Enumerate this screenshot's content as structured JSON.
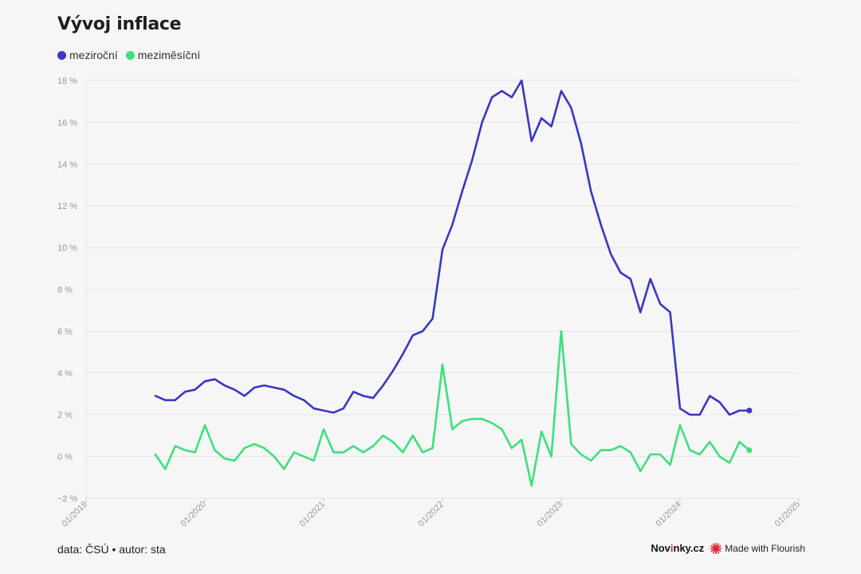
{
  "title": "Vývoj inflace",
  "footer": {
    "source": "data: ČSÚ • autor: sta",
    "brand_prefix": "Nov",
    "brand_accent": "i",
    "brand_suffix": "nky.cz",
    "flourish": "Made with Flourish"
  },
  "colors": {
    "mezirocni": "#3a36c6",
    "mezimesicni": "#3de07e",
    "grid": "#e4e4e4",
    "flourish_icon": "#d8262e"
  },
  "chart_data": {
    "type": "line",
    "ylim": [
      -2,
      18
    ],
    "yticks": [
      -2,
      0,
      2,
      4,
      6,
      8,
      10,
      12,
      14,
      16,
      18
    ],
    "ytick_labels": [
      "−2 %",
      "0 %",
      "2 %",
      "4 %",
      "6 %",
      "8 %",
      "10 %",
      "12 %",
      "14 %",
      "16 %",
      "18 %"
    ],
    "xlim": [
      "01/2019",
      "01/2025"
    ],
    "xtick_labels": [
      "01/2019",
      "01/2020",
      "01/2021",
      "01/2022",
      "01/2023",
      "01/2024",
      "01/2025"
    ],
    "x": [
      "08/2019",
      "09/2019",
      "10/2019",
      "11/2019",
      "12/2019",
      "01/2020",
      "02/2020",
      "03/2020",
      "04/2020",
      "05/2020",
      "06/2020",
      "07/2020",
      "08/2020",
      "09/2020",
      "10/2020",
      "11/2020",
      "12/2020",
      "01/2021",
      "02/2021",
      "03/2021",
      "04/2021",
      "05/2021",
      "06/2021",
      "07/2021",
      "08/2021",
      "09/2021",
      "10/2021",
      "11/2021",
      "12/2021",
      "01/2022",
      "02/2022",
      "03/2022",
      "04/2022",
      "05/2022",
      "06/2022",
      "07/2022",
      "08/2022",
      "09/2022",
      "10/2022",
      "11/2022",
      "12/2022",
      "01/2023",
      "02/2023",
      "03/2023",
      "04/2023",
      "05/2023",
      "06/2023",
      "07/2023",
      "08/2023",
      "09/2023",
      "10/2023",
      "11/2023",
      "12/2023",
      "01/2024",
      "02/2024",
      "03/2024",
      "04/2024",
      "05/2024",
      "06/2024",
      "07/2024",
      "08/2024"
    ],
    "series": [
      {
        "name": "meziroční",
        "values": [
          2.9,
          2.7,
          2.7,
          3.1,
          3.2,
          3.6,
          3.7,
          3.4,
          3.2,
          2.9,
          3.3,
          3.4,
          3.3,
          3.2,
          2.9,
          2.7,
          2.3,
          2.2,
          2.1,
          2.3,
          3.1,
          2.9,
          2.8,
          3.4,
          4.1,
          4.9,
          5.8,
          6.0,
          6.6,
          9.9,
          11.1,
          12.7,
          14.2,
          16.0,
          17.2,
          17.5,
          17.2,
          18.0,
          15.1,
          16.2,
          15.8,
          17.5,
          16.7,
          15.0,
          12.7,
          11.1,
          9.7,
          8.8,
          8.5,
          6.9,
          8.5,
          7.3,
          6.9,
          2.3,
          2.0,
          2.0,
          2.9,
          2.6,
          2.0,
          2.2,
          2.2
        ]
      },
      {
        "name": "meziměsíční",
        "values": [
          0.1,
          -0.6,
          0.5,
          0.3,
          0.2,
          1.5,
          0.3,
          -0.1,
          -0.2,
          0.4,
          0.6,
          0.4,
          0.0,
          -0.6,
          0.2,
          0.0,
          -0.2,
          1.3,
          0.2,
          0.2,
          0.5,
          0.2,
          0.5,
          1.0,
          0.7,
          0.2,
          1.0,
          0.2,
          0.4,
          4.4,
          1.3,
          1.7,
          1.8,
          1.8,
          1.6,
          1.3,
          0.4,
          0.8,
          -1.4,
          1.2,
          0.0,
          6.0,
          0.6,
          0.1,
          -0.2,
          0.3,
          0.3,
          0.5,
          0.2,
          -0.7,
          0.1,
          0.1,
          -0.4,
          1.5,
          0.3,
          0.1,
          0.7,
          0.0,
          -0.3,
          0.7,
          0.3
        ]
      }
    ],
    "grid": true,
    "legend_position": "top-left"
  }
}
